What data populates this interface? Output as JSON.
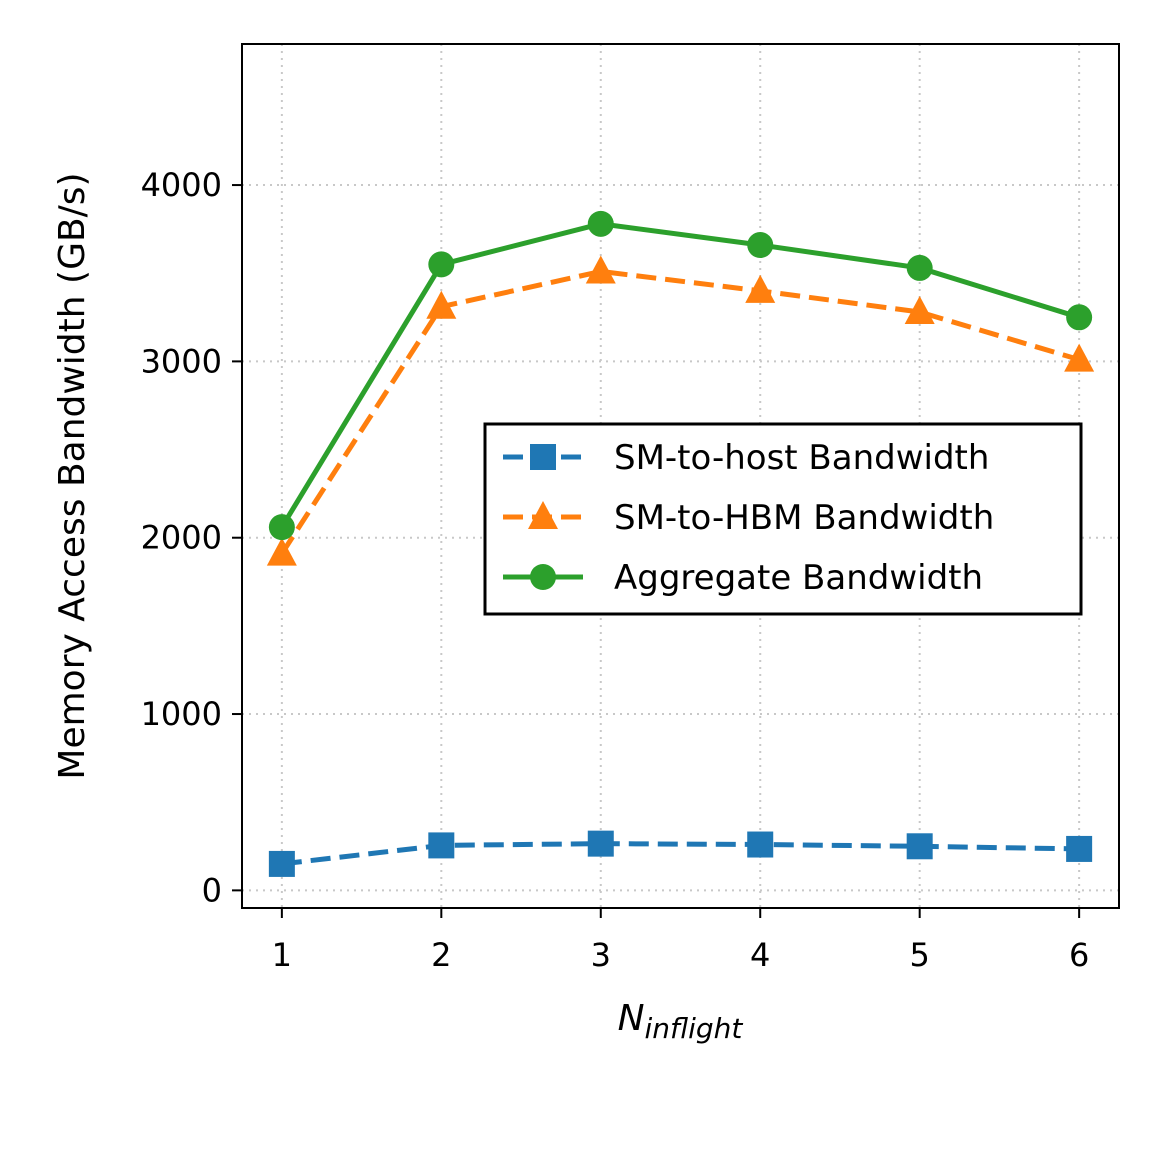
{
  "chart_data": {
    "type": "line",
    "title": "",
    "xlabel": {
      "main": "N",
      "subscript": "inflight"
    },
    "ylabel": "Memory Access Bandwidth (GB/s)",
    "x": [
      1,
      2,
      3,
      4,
      5,
      6
    ],
    "xlim": [
      0.75,
      6.25
    ],
    "ylim": [
      -100,
      4800
    ],
    "xticks": [
      "1",
      "2",
      "3",
      "4",
      "5",
      "6"
    ],
    "yticks": [
      "0",
      "1000",
      "2000",
      "3000",
      "4000"
    ],
    "grid": true,
    "legend_position": "center-right",
    "series": [
      {
        "name": "SM-to-host Bandwidth",
        "values": [
          150,
          255,
          265,
          260,
          250,
          235
        ],
        "color": "#1f77b4",
        "marker": "square",
        "linestyle": "dashed"
      },
      {
        "name": "SM-to-HBM Bandwidth",
        "values": [
          1910,
          3310,
          3510,
          3400,
          3280,
          3010
        ],
        "color": "#ff7f0e",
        "marker": "triangle",
        "linestyle": "dashed"
      },
      {
        "name": "Aggregate Bandwidth",
        "values": [
          2060,
          3550,
          3780,
          3660,
          3530,
          3250
        ],
        "color": "#2ca02c",
        "marker": "circle",
        "linestyle": "solid"
      }
    ]
  }
}
